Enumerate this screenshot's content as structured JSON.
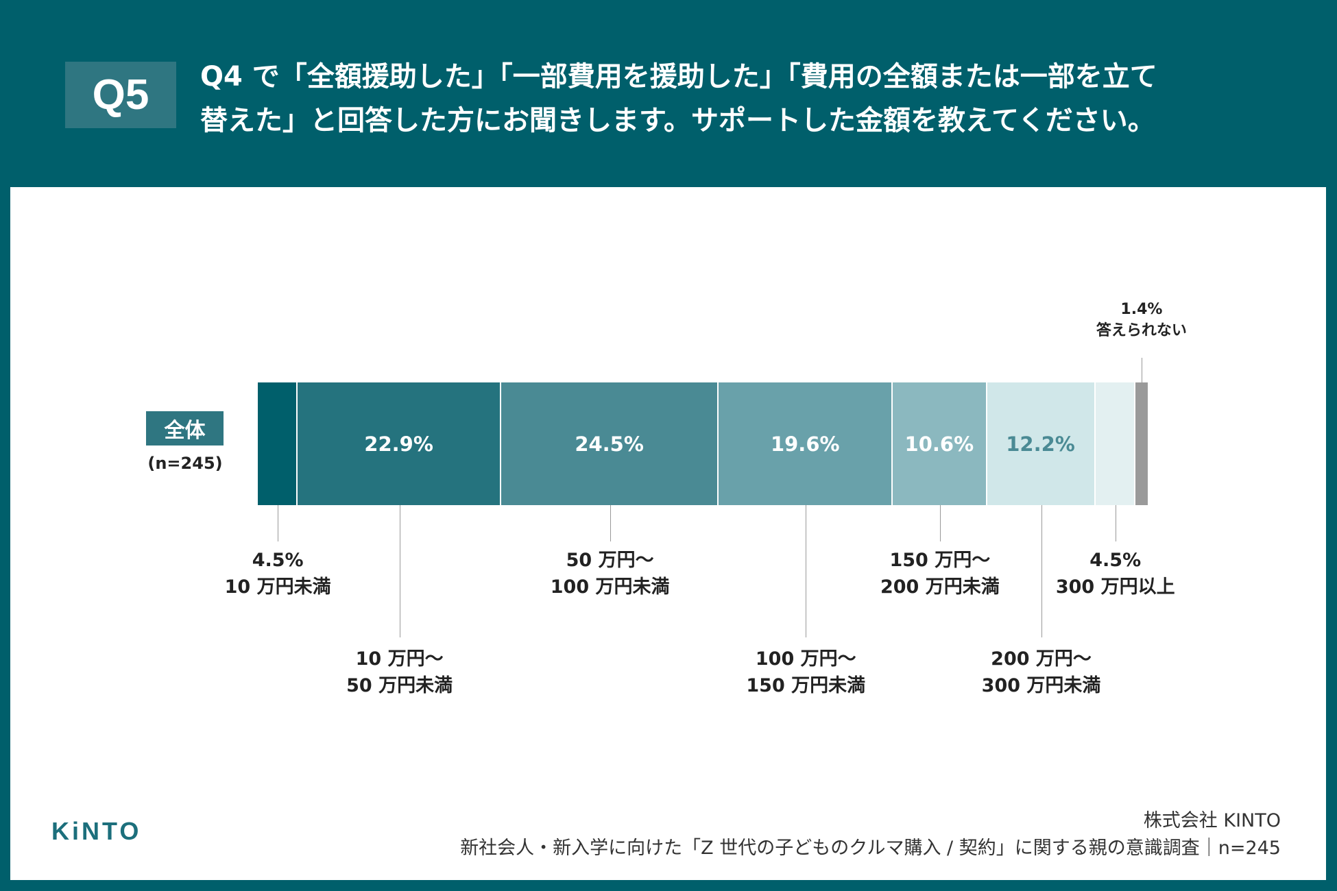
{
  "header": {
    "question_no": "Q5",
    "title_line1": "Q4 で「全額援助した」「一部費用を援助した」「費用の全額または一部を立て",
    "title_line2": "替えた」と回答した方にお聞きします。サポートした金額を教えてください。"
  },
  "chart_data": {
    "type": "bar",
    "orientation": "horizontal-stacked",
    "group": {
      "label": "全体",
      "n": "(n=245)"
    },
    "unit": "%",
    "segments": [
      {
        "name": "10 万円未満",
        "label_lines": [
          "4.5%",
          "10 万円未満"
        ],
        "value": 4.5,
        "inside": "",
        "color": "#005f6b",
        "text_color": "#ffffff",
        "label_pos": "below-near"
      },
      {
        "name": "10 万円〜50 万円未満",
        "label_lines": [
          "10 万円〜",
          "50 万円未満"
        ],
        "value": 22.9,
        "inside": "22.9%",
        "color": "#25737e",
        "text_color": "#ffffff",
        "label_pos": "below-far"
      },
      {
        "name": "50 万円〜100 万円未満",
        "label_lines": [
          "50 万円〜",
          "100 万円未満"
        ],
        "value": 24.5,
        "inside": "24.5%",
        "color": "#4a8a94",
        "text_color": "#ffffff",
        "label_pos": "below-near"
      },
      {
        "name": "100 万円〜150 万円未満",
        "label_lines": [
          "100 万円〜",
          "150 万円未満"
        ],
        "value": 19.6,
        "inside": "19.6%",
        "color": "#69a1aa",
        "text_color": "#ffffff",
        "label_pos": "below-far"
      },
      {
        "name": "150 万円〜200 万円未満",
        "label_lines": [
          "150 万円〜",
          "200 万円未満"
        ],
        "value": 10.6,
        "inside": "10.6%",
        "color": "#8bb8bf",
        "text_color": "#ffffff",
        "label_pos": "below-near"
      },
      {
        "name": "200 万円〜300 万円未満",
        "label_lines": [
          "200 万円〜",
          "300 万円未満"
        ],
        "value": 12.2,
        "inside": "12.2%",
        "color": "#d0e7e9",
        "text_color": "#4a8a94",
        "label_pos": "below-far"
      },
      {
        "name": "300 万円以上",
        "label_lines": [
          "4.5%",
          "300 万円以上"
        ],
        "value": 4.5,
        "inside": "",
        "color": "#e3f0f1",
        "text_color": "#ffffff",
        "label_pos": "below-near"
      },
      {
        "name": "答えられない",
        "label_lines": [
          "1.4%",
          "答えられない"
        ],
        "value": 1.4,
        "inside": "",
        "color": "#9a9a9a",
        "text_color": "#ffffff",
        "label_pos": "above"
      }
    ]
  },
  "footer": {
    "logo": "KiNTO",
    "company": "株式会社 KINTO",
    "source": "新社会人・新入学に向けた「Z 世代の子どものクルマ購入 / 契約」に関する親の意識調査｜n=245"
  }
}
